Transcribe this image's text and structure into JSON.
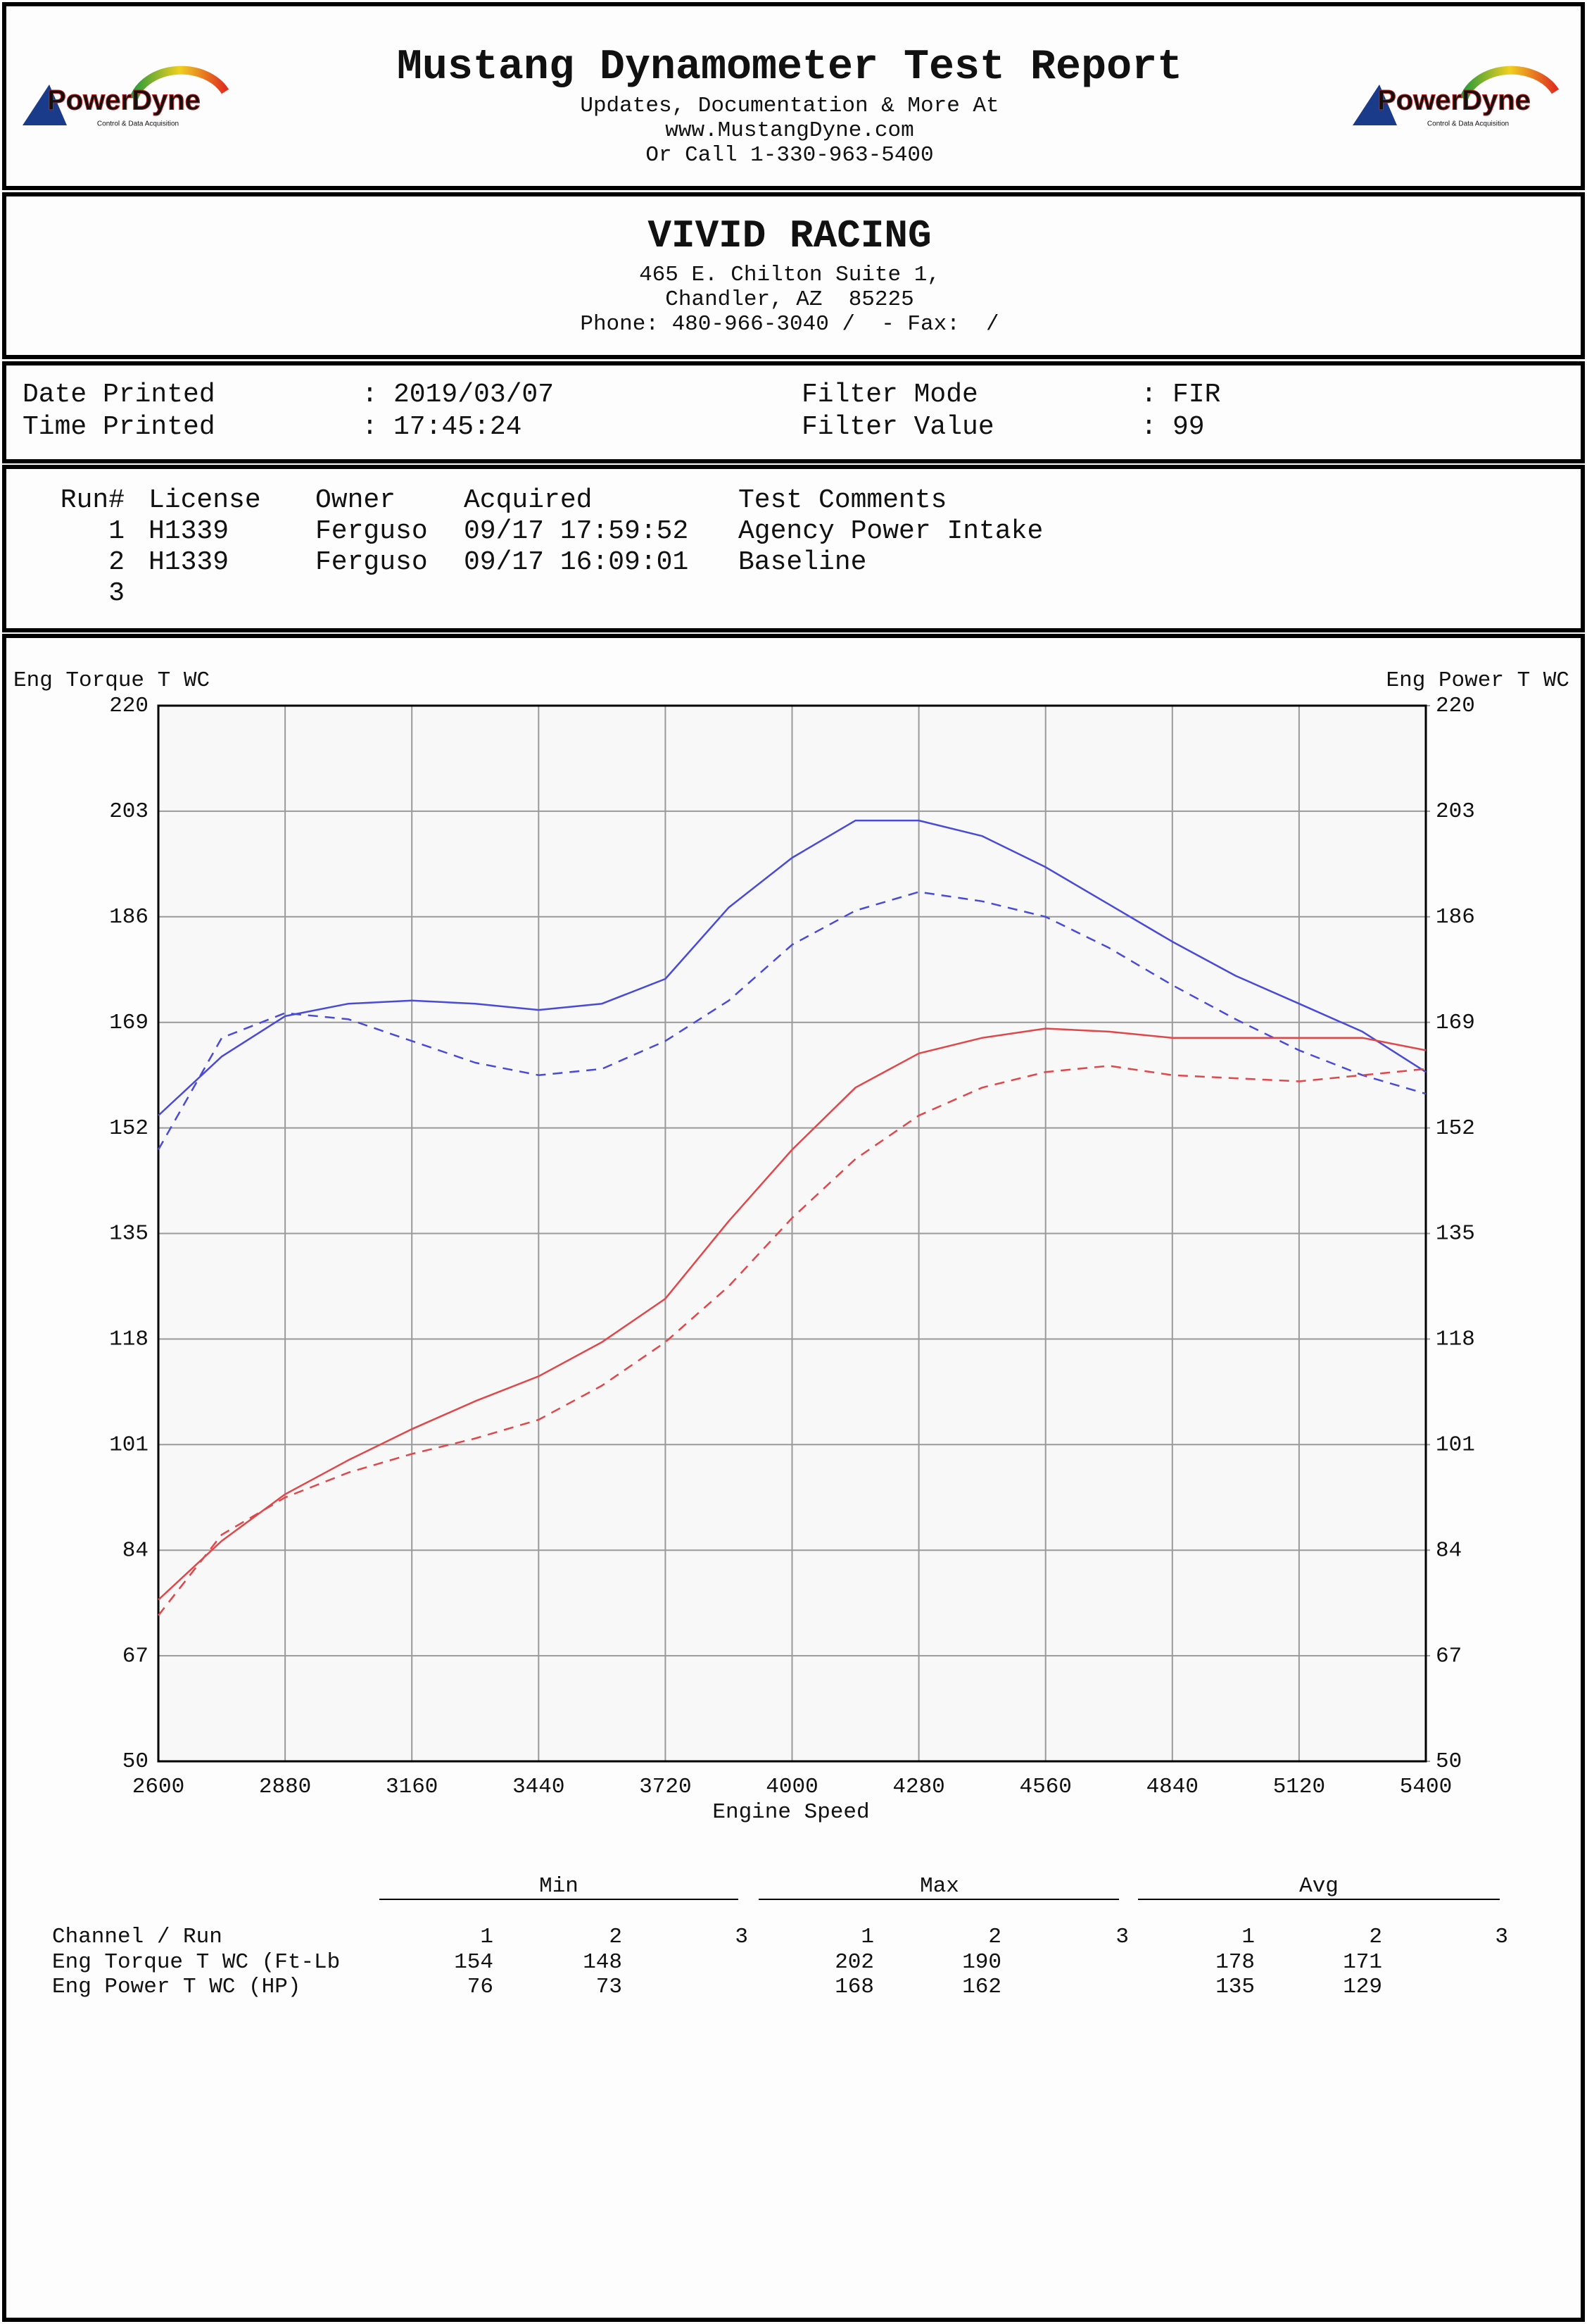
{
  "header": {
    "title": "Mustang Dynamometer Test Report",
    "lines": [
      "Updates, Documentation & More At",
      "www.MustangDyne.com",
      "Or Call 1-330-963-5400"
    ]
  },
  "logo": {
    "brand": "PowerDyne",
    "tagline": "Control & Data Acquisition"
  },
  "shop": {
    "name": "VIVID RACING",
    "lines": [
      "465 E. Chilton Suite 1,",
      "Chandler, AZ  85225",
      "Phone: 480-966-3040 /  - Fax:  /"
    ]
  },
  "print_info": {
    "separator": ":",
    "items": [
      {
        "label": "Date Printed",
        "value": "2019/03/07"
      },
      {
        "label": "Time Printed",
        "value": "17:45:24"
      },
      {
        "label": "Filter Mode",
        "value": "FIR"
      },
      {
        "label": "Filter Value",
        "value": "99"
      }
    ]
  },
  "runs": {
    "columns": [
      "Run#",
      "License",
      "Owner",
      "Acquired",
      "Test Comments"
    ],
    "rows": [
      [
        "1",
        "H1339",
        "Ferguso",
        "09/17 17:59:52",
        "Agency Power Intake"
      ],
      [
        "2",
        "H1339",
        "Ferguso",
        "09/17 16:09:01",
        "Baseline"
      ],
      [
        "3"
      ]
    ]
  },
  "chart_data": {
    "type": "line",
    "y_label": "Eng Torque T WC",
    "y2_label": "Eng Power T WC",
    "x_label": "Engine Speed",
    "x": [
      2600,
      2740,
      2880,
      3020,
      3160,
      3300,
      3440,
      3580,
      3720,
      3860,
      4000,
      4140,
      4280,
      4420,
      4560,
      4700,
      4840,
      4980,
      5120,
      5260,
      5400
    ],
    "xlim": [
      2600,
      5400
    ],
    "xticks": [
      2600,
      2880,
      3160,
      3440,
      3720,
      4000,
      4280,
      4560,
      4840,
      5120,
      5400
    ],
    "ylim": [
      50,
      220
    ],
    "yticks": [
      50,
      67,
      84,
      101,
      118,
      135,
      152,
      169,
      186,
      203,
      220
    ],
    "y2lim": [
      50,
      220
    ],
    "y2ticks": [
      50,
      67,
      84,
      101,
      118,
      135,
      152,
      169,
      186,
      203,
      220
    ],
    "grid": true,
    "xtick_color": "#3a96d8",
    "series": [
      {
        "color": "#4a4ad8",
        "dashed": false,
        "axis": "y",
        "values": [
          154,
          163.5,
          170,
          172,
          172.5,
          172,
          171,
          172,
          176,
          187.5,
          195.5,
          201.5,
          201.5,
          199,
          194,
          188,
          182,
          176.5,
          172,
          167.5,
          161
        ]
      },
      {
        "color": "#4a4ad8",
        "dashed": true,
        "axis": "y",
        "values": [
          148.5,
          166.5,
          170.5,
          169.5,
          166,
          162.5,
          160.5,
          161.5,
          166,
          172.5,
          181.5,
          187,
          190,
          188.5,
          186,
          181,
          175,
          169.5,
          164.5,
          160.5,
          157.5
        ]
      },
      {
        "color": "#e0474a",
        "dashed": false,
        "axis": "y2",
        "values": [
          76,
          85.5,
          93,
          98.5,
          103.5,
          108,
          112,
          117.5,
          124.5,
          137,
          148.5,
          158.5,
          164,
          166.5,
          168,
          167.5,
          166.5,
          166.5,
          166.5,
          166.5,
          164.5
        ]
      },
      {
        "color": "#e0474a",
        "dashed": true,
        "axis": "y2",
        "values": [
          73.5,
          86.5,
          92.5,
          96.5,
          99.5,
          102,
          105,
          110.5,
          117.5,
          126.5,
          137.5,
          147,
          154,
          158.5,
          161,
          162,
          160.5,
          160,
          159.5,
          160.5,
          161.5
        ]
      }
    ]
  },
  "summary": {
    "groups": [
      "Min",
      "Max",
      "Avg"
    ],
    "header": "Channel / Run",
    "runs": [
      "1",
      "2",
      "3"
    ],
    "rows": [
      {
        "channel": "Eng Torque T WC (Ft-Lb",
        "color": "#4a4ad8",
        "values": [
          "154",
          "148",
          null,
          "202",
          "190",
          null,
          "178",
          "171",
          null
        ]
      },
      {
        "channel": "Eng Power T WC (HP)",
        "color": "#e0474a",
        "values": [
          "76",
          "73",
          null,
          "168",
          "162",
          null,
          "135",
          "129",
          null
        ]
      }
    ]
  }
}
